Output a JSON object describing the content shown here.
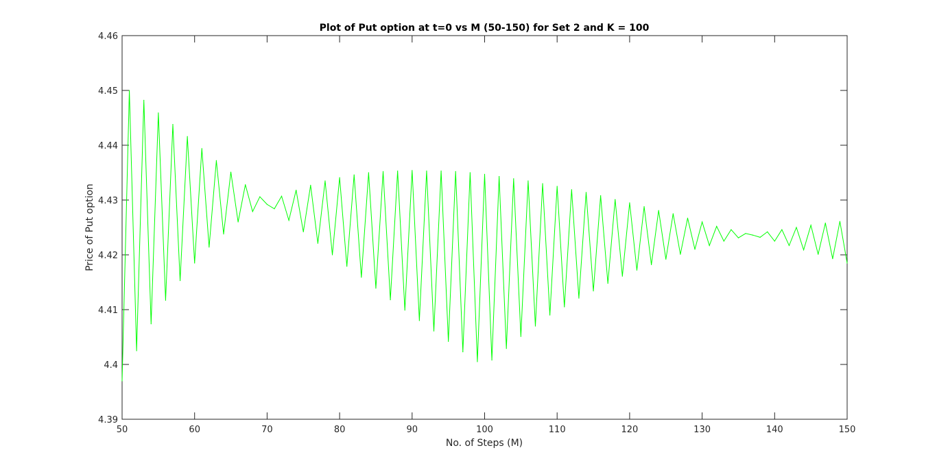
{
  "chart_data": {
    "type": "line",
    "title": "Plot of Put option at t=0 vs M (50-150) for Set 2 and K = 100",
    "xlabel": "No. of Steps (M)",
    "ylabel": "Price of Put option",
    "xlim": [
      50,
      150
    ],
    "ylim": [
      4.39,
      4.46
    ],
    "xticks": [
      50,
      60,
      70,
      80,
      90,
      100,
      110,
      120,
      130,
      140,
      150
    ],
    "yticks": [
      4.39,
      4.4,
      4.41,
      4.42,
      4.43,
      4.44,
      4.45,
      4.46
    ],
    "xtick_labels": [
      "50",
      "60",
      "70",
      "80",
      "90",
      "100",
      "110",
      "120",
      "130",
      "140",
      "150"
    ],
    "ytick_labels": [
      "4.39",
      "4.4",
      "4.41",
      "4.42",
      "4.43",
      "4.44",
      "4.45",
      "4.46"
    ],
    "grid": false,
    "line_color": "#00ff00",
    "series": [
      {
        "x": [
          50,
          51,
          52,
          53,
          54,
          55,
          56,
          57,
          58,
          59,
          60,
          61,
          62,
          63,
          64,
          65,
          66,
          67,
          68,
          69,
          70,
          71,
          72,
          73,
          74,
          75,
          76,
          77,
          78,
          79,
          80,
          81,
          82,
          83,
          84,
          85,
          86,
          87,
          88,
          89,
          90,
          91,
          92,
          93,
          94,
          95,
          96,
          97,
          98,
          99,
          100,
          101,
          102,
          103,
          104,
          105,
          106,
          107,
          108,
          109,
          110,
          111,
          112,
          113,
          114,
          115,
          116,
          117,
          118,
          119,
          120,
          121,
          122,
          123,
          124,
          125,
          126,
          127,
          128,
          129,
          130,
          131,
          132,
          133,
          134,
          135,
          136,
          137,
          138,
          139,
          140,
          141,
          142,
          143,
          144,
          145,
          146,
          147,
          148,
          149,
          150
        ],
        "y": [
          4.397,
          4.45,
          4.4025,
          4.4482,
          4.4074,
          4.4459,
          4.4117,
          4.4438,
          4.4153,
          4.4416,
          4.4185,
          4.4394,
          4.4214,
          4.4372,
          4.4238,
          4.4351,
          4.426,
          4.4328,
          4.4279,
          4.4306,
          4.4292,
          4.4284,
          4.4307,
          4.4263,
          4.4318,
          4.4242,
          4.4327,
          4.4221,
          4.4335,
          4.42,
          4.4341,
          4.4179,
          4.4346,
          4.4159,
          4.435,
          4.4139,
          4.4352,
          4.4118,
          4.4353,
          4.4099,
          4.4354,
          4.408,
          4.4353,
          4.4061,
          4.4353,
          4.4042,
          4.4352,
          4.4023,
          4.435,
          4.4005,
          4.4347,
          4.4008,
          4.4343,
          4.4029,
          4.4339,
          4.4051,
          4.4335,
          4.407,
          4.433,
          4.409,
          4.4325,
          4.4105,
          4.4319,
          4.4121,
          4.4314,
          4.4134,
          4.4308,
          4.4148,
          4.4301,
          4.4161,
          4.4295,
          4.4172,
          4.4288,
          4.4182,
          4.4281,
          4.4192,
          4.4275,
          4.4201,
          4.4267,
          4.421,
          4.426,
          4.4217,
          4.4252,
          4.4225,
          4.4246,
          4.4231,
          4.4239,
          4.4236,
          4.4232,
          4.4242,
          4.4225,
          4.4246,
          4.4217,
          4.425,
          4.4209,
          4.4254,
          4.4201,
          4.4258,
          4.4193,
          4.4261,
          4.4185
        ]
      }
    ]
  }
}
